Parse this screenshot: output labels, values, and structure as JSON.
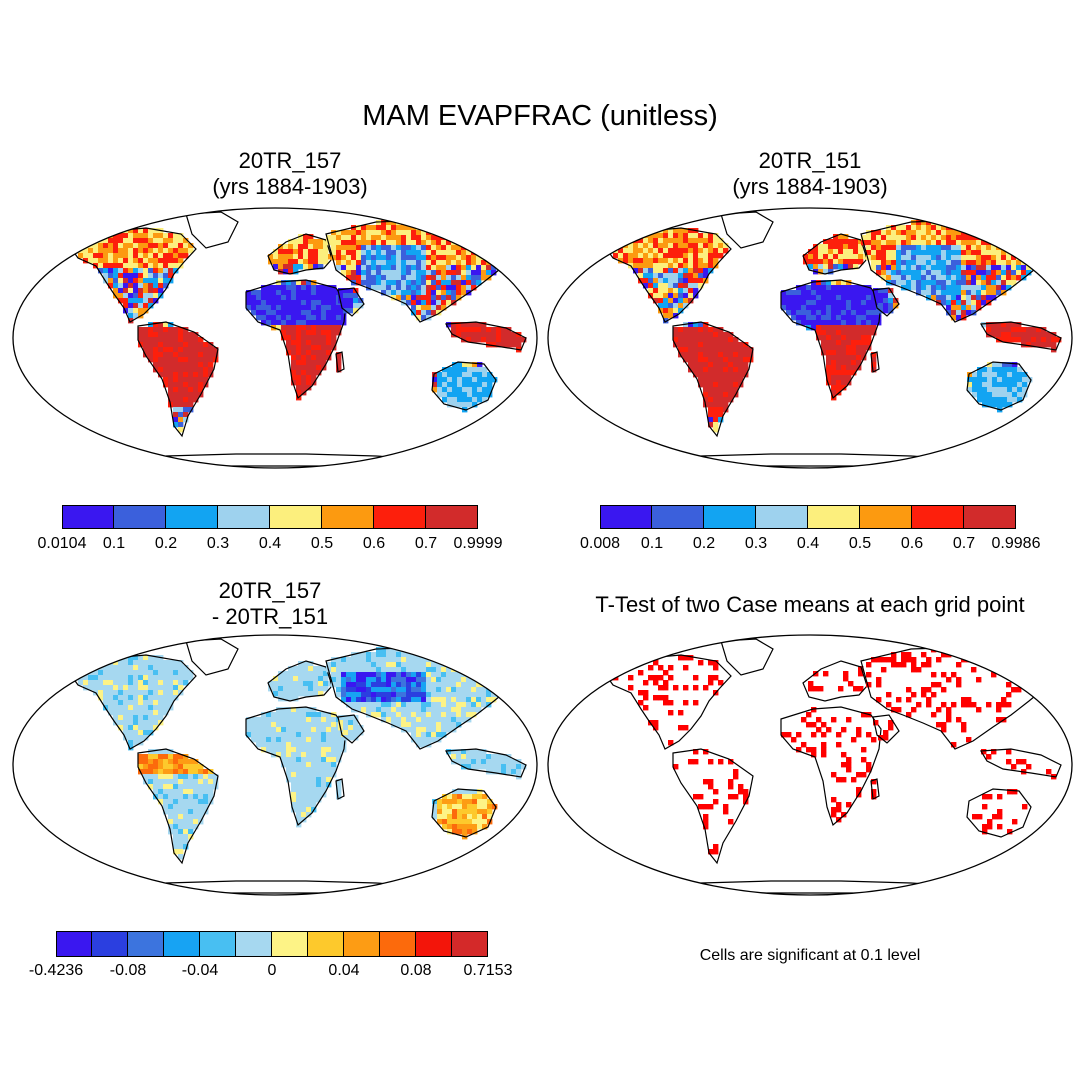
{
  "figure": {
    "title": "MAM EVAPFRAC (unitless)"
  },
  "panels": [
    {
      "id": "top-left",
      "title_line1": "20TR_157",
      "title_line2": "(yrs 1884-1903)",
      "kind": "field",
      "colorbar": {
        "colors": [
          "#3a17f0",
          "#3b60dc",
          "#12a4f2",
          "#9ed2ee",
          "#fcef7d",
          "#fc9a10",
          "#fd1f0c",
          "#d22b2b"
        ],
        "tick_labels": [
          "0.0104",
          "0.1",
          "0.2",
          "0.3",
          "0.4",
          "0.5",
          "0.6",
          "0.7",
          "0.9999"
        ]
      }
    },
    {
      "id": "top-right",
      "title_line1": "20TR_151",
      "title_line2": "(yrs 1884-1903)",
      "kind": "field",
      "colorbar": {
        "colors": [
          "#3a17f0",
          "#3b60dc",
          "#12a4f2",
          "#9ed2ee",
          "#fcef7d",
          "#fc9a10",
          "#fd1f0c",
          "#d22b2b"
        ],
        "tick_labels": [
          "0.008",
          "0.1",
          "0.2",
          "0.3",
          "0.4",
          "0.5",
          "0.6",
          "0.7",
          "0.9986"
        ]
      }
    },
    {
      "id": "bottom-left",
      "title_line1": "20TR_157",
      "title_line2": "- 20TR_151",
      "kind": "difference",
      "colorbar": {
        "colors": [
          "#3a17f0",
          "#2b3fe0",
          "#3c74de",
          "#17a3f3",
          "#48bff2",
          "#a6d8f0",
          "#fdf386",
          "#fdc92c",
          "#fd9c14",
          "#fc6a0c",
          "#f3150a",
          "#d42929"
        ],
        "tick_labels": [
          "-0.4236",
          "-0.08",
          "-0.04",
          "0",
          "0.04",
          "0.08",
          "0.7153"
        ]
      }
    },
    {
      "id": "bottom-right",
      "title_line1": "T-Test of two Case means at each grid point",
      "kind": "significance",
      "note": "Cells are significant at 0.1 level",
      "colors": {
        "significant": "#ff0000"
      }
    }
  ]
}
